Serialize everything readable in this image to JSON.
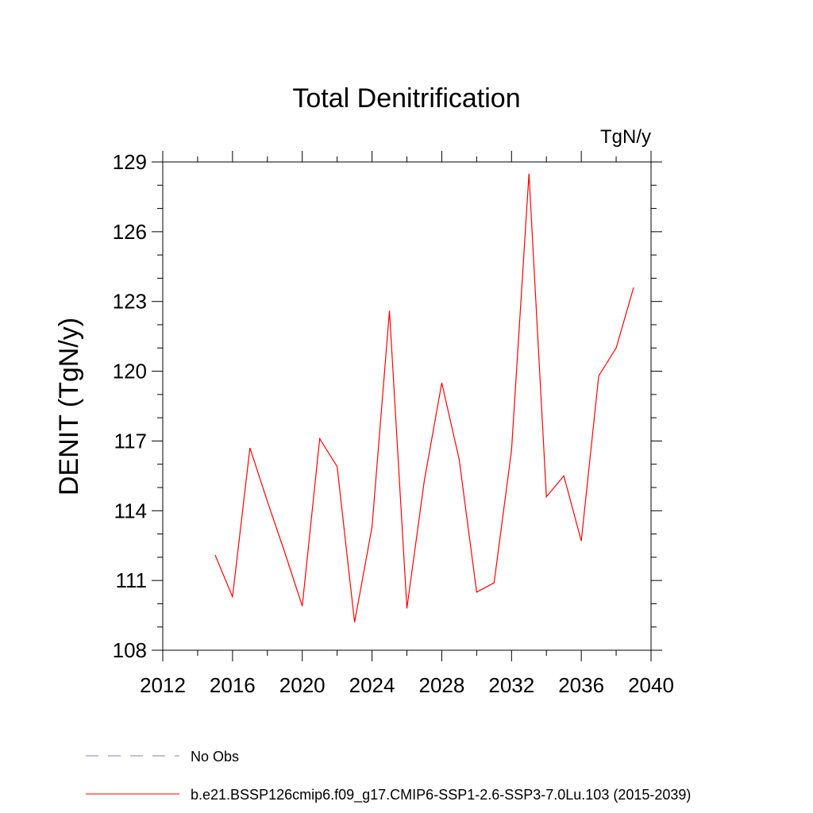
{
  "chart_data": {
    "type": "line",
    "title": "Total Denitrification",
    "units": "TgN/y",
    "ylabel": "DENIT  (TgN/y)",
    "xlabel": "",
    "xlim": [
      2012,
      2040
    ],
    "ylim": [
      108,
      129
    ],
    "xticks": [
      2012,
      2016,
      2020,
      2024,
      2028,
      2032,
      2036,
      2040
    ],
    "yticks": [
      108,
      111,
      114,
      117,
      120,
      123,
      126,
      129
    ],
    "grid": false,
    "legend_position": "bottom",
    "series": [
      {
        "name": "b.e21.BSSP126cmip6.f09_g17.CMIP6-SSP1-2.6-SSP3-7.0Lu.103 (2015-2039)",
        "color": "#ff0000",
        "style": "solid",
        "x": [
          2015,
          2016,
          2017,
          2018,
          2019,
          2020,
          2021,
          2022,
          2023,
          2024,
          2025,
          2026,
          2027,
          2028,
          2029,
          2030,
          2031,
          2032,
          2033,
          2034,
          2035,
          2036,
          2037,
          2038,
          2039
        ],
        "y": [
          112.1,
          110.3,
          116.7,
          114.4,
          112.2,
          109.9,
          117.1,
          115.9,
          109.2,
          113.3,
          122.6,
          109.8,
          115.3,
          119.5,
          116.2,
          110.5,
          110.9,
          116.6,
          128.5,
          114.6,
          115.5,
          112.7,
          119.8,
          121.0,
          123.6
        ]
      }
    ],
    "legend": [
      {
        "label": "No Obs",
        "color": "#7f7fbf",
        "style": "dashed"
      },
      {
        "label": "b.e21.BSSP126cmip6.f09_g17.CMIP6-SSP1-2.6-SSP3-7.0Lu.103 (2015-2039)",
        "color": "#ff0000",
        "style": "solid"
      }
    ]
  }
}
